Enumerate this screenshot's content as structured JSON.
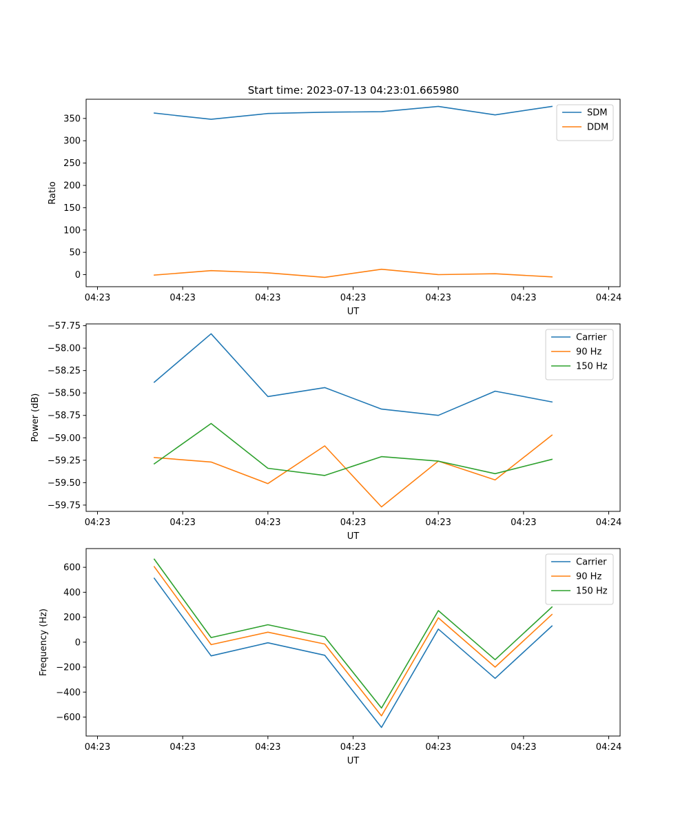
{
  "figure": {
    "title": "Start time: 2023-07-13 04:23:01.665980"
  },
  "chart_data": [
    {
      "type": "line",
      "title": "Start time: 2023-07-13 04:23:01.665980",
      "xlabel": "UT",
      "ylabel": "Ratio",
      "x": [
        1,
        2,
        3,
        4,
        5,
        6,
        7,
        8
      ],
      "xlim": [
        -0.2,
        9.2
      ],
      "xticks": [
        0,
        1.5,
        3,
        4.5,
        6,
        7.5,
        9
      ],
      "xticklabels": [
        "04:23",
        "04:23",
        "04:23",
        "04:23",
        "04:23",
        "04:23",
        "04:24"
      ],
      "ylim": [
        -27,
        393
      ],
      "yticks": [
        0,
        50,
        100,
        150,
        200,
        250,
        300,
        350
      ],
      "yticklabels": [
        "0",
        "50",
        "100",
        "150",
        "200",
        "250",
        "300",
        "350"
      ],
      "grid": false,
      "legend": "top-right",
      "series": [
        {
          "name": "SDM",
          "color": "#1f77b4",
          "values": [
            362,
            348,
            361,
            364,
            365,
            377,
            358,
            377
          ]
        },
        {
          "name": "DDM",
          "color": "#ff7f0e",
          "values": [
            -1,
            9,
            4,
            -6,
            12,
            0,
            2,
            -5
          ]
        }
      ]
    },
    {
      "type": "line",
      "title": "",
      "xlabel": "UT",
      "ylabel": "Power (dB)",
      "x": [
        1,
        2,
        3,
        4,
        5,
        6,
        7,
        8
      ],
      "xlim": [
        -0.2,
        9.2
      ],
      "xticks": [
        0,
        1.5,
        3,
        4.5,
        6,
        7.5,
        9
      ],
      "xticklabels": [
        "04:23",
        "04:23",
        "04:23",
        "04:23",
        "04:23",
        "04:23",
        "04:24"
      ],
      "ylim": [
        -59.82,
        -57.73
      ],
      "yticks": [
        -57.75,
        -58.0,
        -58.25,
        -58.5,
        -58.75,
        -59.0,
        -59.25,
        -59.5,
        -59.75
      ],
      "yticklabels": [
        "−57.75",
        "−58.00",
        "−58.25",
        "−58.50",
        "−58.75",
        "−59.00",
        "−59.25",
        "−59.50",
        "−59.75"
      ],
      "grid": false,
      "legend": "top-right",
      "series": [
        {
          "name": "Carrier",
          "color": "#1f77b4",
          "values": [
            -58.38,
            -57.84,
            -58.54,
            -58.44,
            -58.68,
            -58.75,
            -58.48,
            -58.6
          ]
        },
        {
          "name": "90 Hz",
          "color": "#ff7f0e",
          "values": [
            -59.22,
            -59.27,
            -59.51,
            -59.09,
            -59.77,
            -59.26,
            -59.47,
            -58.97
          ]
        },
        {
          "name": "150 Hz",
          "color": "#2ca02c",
          "values": [
            -59.29,
            -58.84,
            -59.34,
            -59.42,
            -59.21,
            -59.26,
            -59.4,
            -59.24
          ]
        }
      ]
    },
    {
      "type": "line",
      "title": "",
      "xlabel": "UT",
      "ylabel": "Frequency (Hz)",
      "x": [
        1,
        2,
        3,
        4,
        5,
        6,
        7,
        8
      ],
      "xlim": [
        -0.2,
        9.2
      ],
      "xticks": [
        0,
        1.5,
        3,
        4.5,
        6,
        7.5,
        9
      ],
      "xticklabels": [
        "04:23",
        "04:23",
        "04:23",
        "04:23",
        "04:23",
        "04:23",
        "04:24"
      ],
      "ylim": [
        -752,
        750
      ],
      "yticks": [
        600,
        400,
        200,
        0,
        -200,
        -400,
        -600
      ],
      "yticklabels": [
        "600",
        "400",
        "200",
        "0",
        "−200",
        "−400",
        "−600"
      ],
      "grid": false,
      "legend": "top-right",
      "series": [
        {
          "name": "Carrier",
          "color": "#1f77b4",
          "values": [
            512,
            -110,
            -5,
            -105,
            -683,
            105,
            -290,
            130
          ]
        },
        {
          "name": "90 Hz",
          "color": "#ff7f0e",
          "values": [
            605,
            -20,
            80,
            -15,
            -590,
            195,
            -200,
            222
          ]
        },
        {
          "name": "150 Hz",
          "color": "#2ca02c",
          "values": [
            665,
            37,
            140,
            43,
            -528,
            253,
            -140,
            282
          ]
        }
      ]
    }
  ]
}
